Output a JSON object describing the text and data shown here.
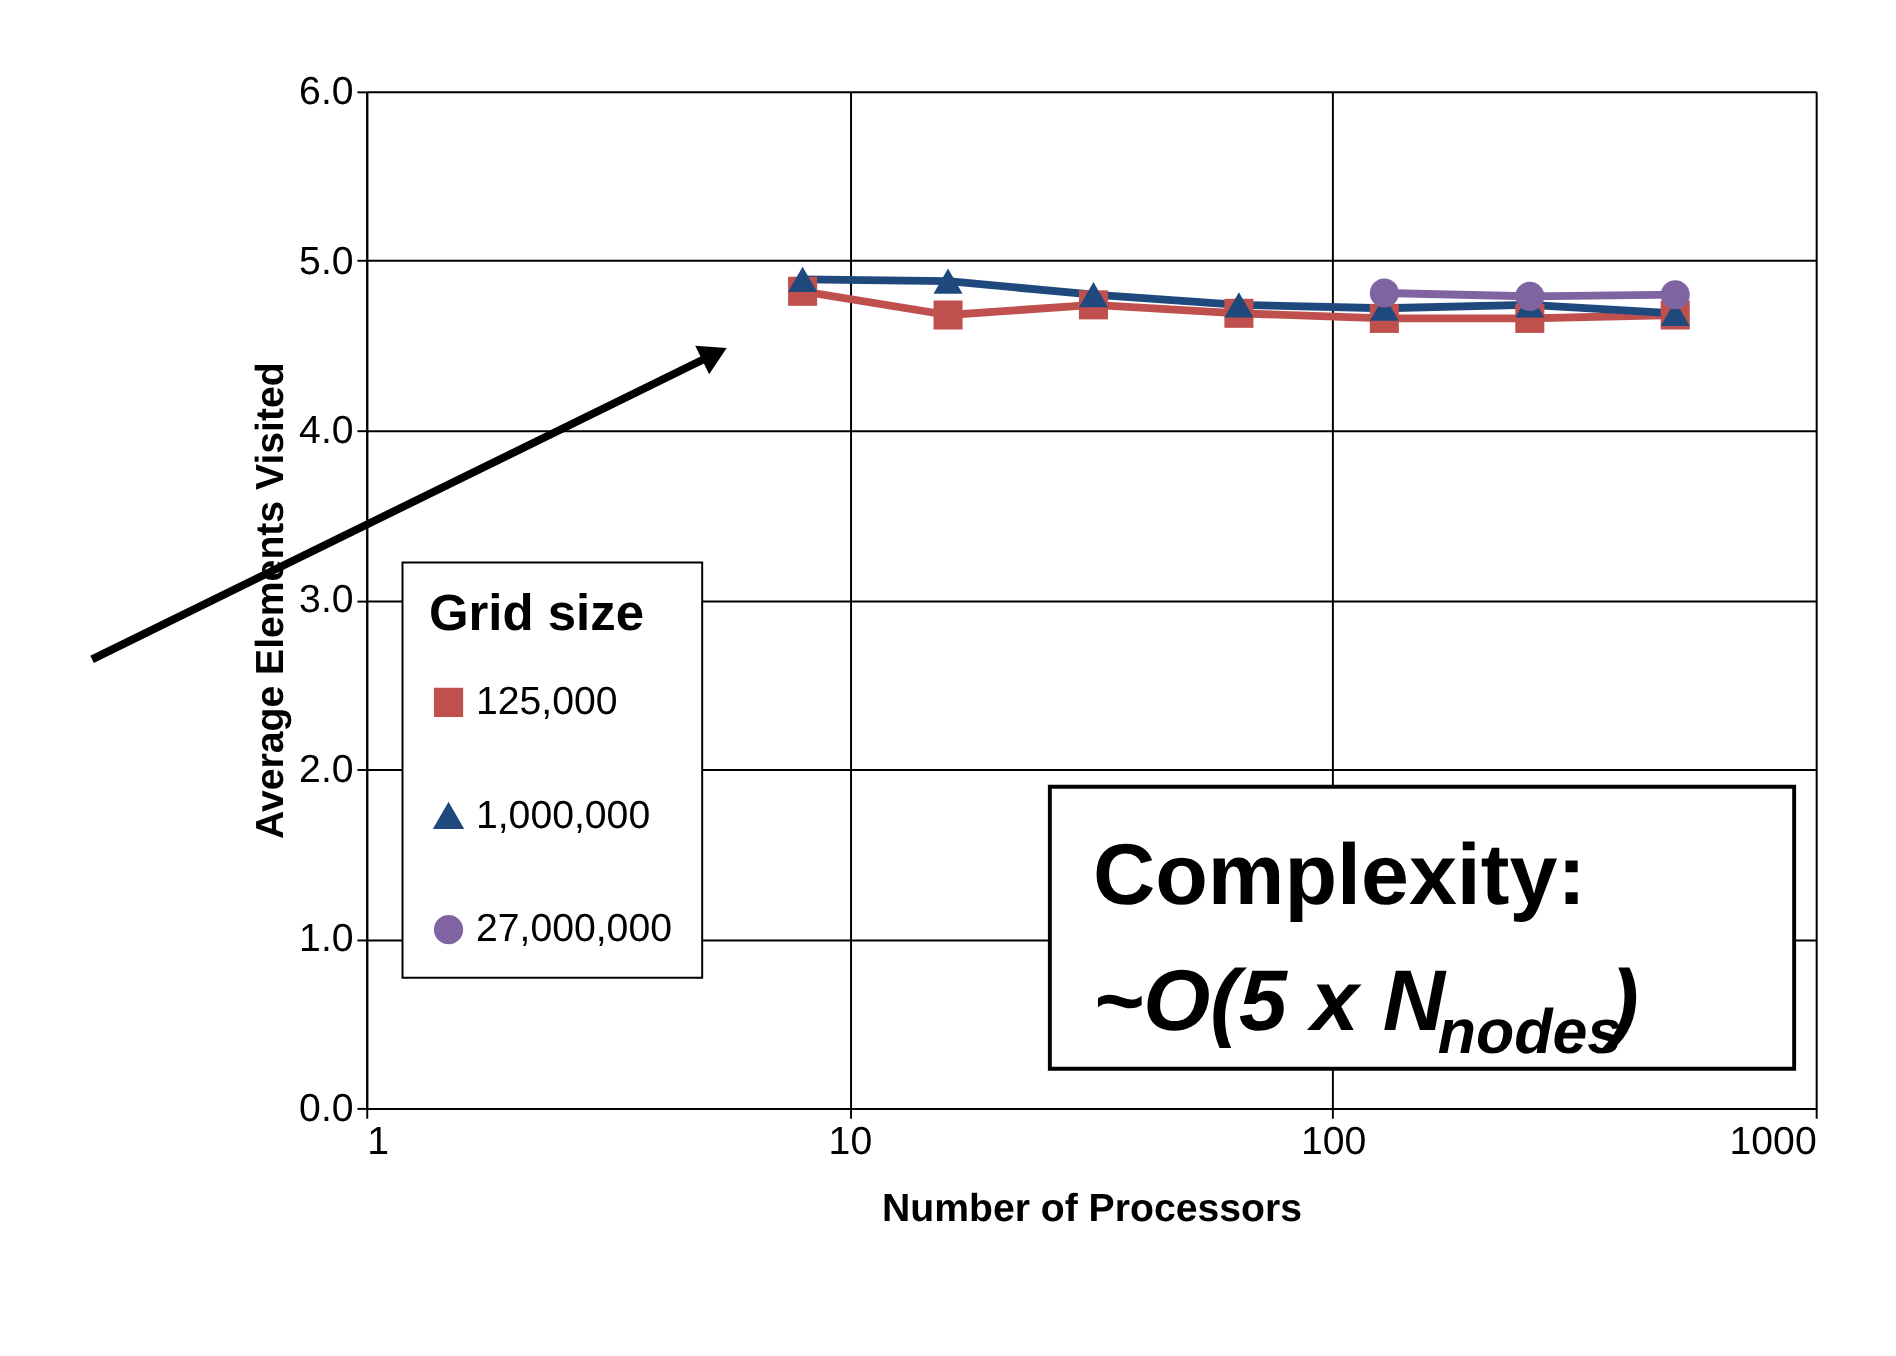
{
  "chart_data": {
    "type": "line",
    "xlabel": "Number of Processors",
    "ylabel": "Average Elements Visited",
    "legend_title": "Grid size",
    "x": [
      8,
      16,
      32,
      64,
      128,
      256,
      512
    ],
    "series": [
      {
        "name": "125,000",
        "color": "#c0504d",
        "marker": "square",
        "values": [
          4.82,
          4.68,
          4.74,
          4.69,
          4.66,
          4.66,
          4.68
        ]
      },
      {
        "name": "1,000,000",
        "color": "#1f497d",
        "marker": "triangle",
        "values": [
          4.89,
          4.88,
          4.8,
          4.74,
          4.72,
          4.74,
          4.69
        ]
      },
      {
        "name": "27,000,000",
        "color": "#8064a2",
        "marker": "circle",
        "values": [
          null,
          null,
          null,
          null,
          4.81,
          4.79,
          4.8
        ]
      }
    ],
    "log": "x",
    "xlim": [
      1,
      1000
    ],
    "xticks": [
      1,
      10,
      100,
      1000
    ],
    "ylim": [
      0,
      6
    ],
    "yticks": [
      {
        "value": 0,
        "label": "0.0"
      },
      {
        "value": 1,
        "label": "1.0"
      },
      {
        "value": 2,
        "label": "2.0"
      },
      {
        "value": 3,
        "label": "3.0"
      },
      {
        "value": 4,
        "label": "4.0"
      },
      {
        "value": 5,
        "label": "5.0"
      },
      {
        "value": 6,
        "label": "6.0"
      }
    ],
    "grid": true,
    "legend": "left",
    "line_style": "solid",
    "annotations": [
      "Complexity:\n~O(5 x N$_{nodes}$)"
    ]
  }
}
